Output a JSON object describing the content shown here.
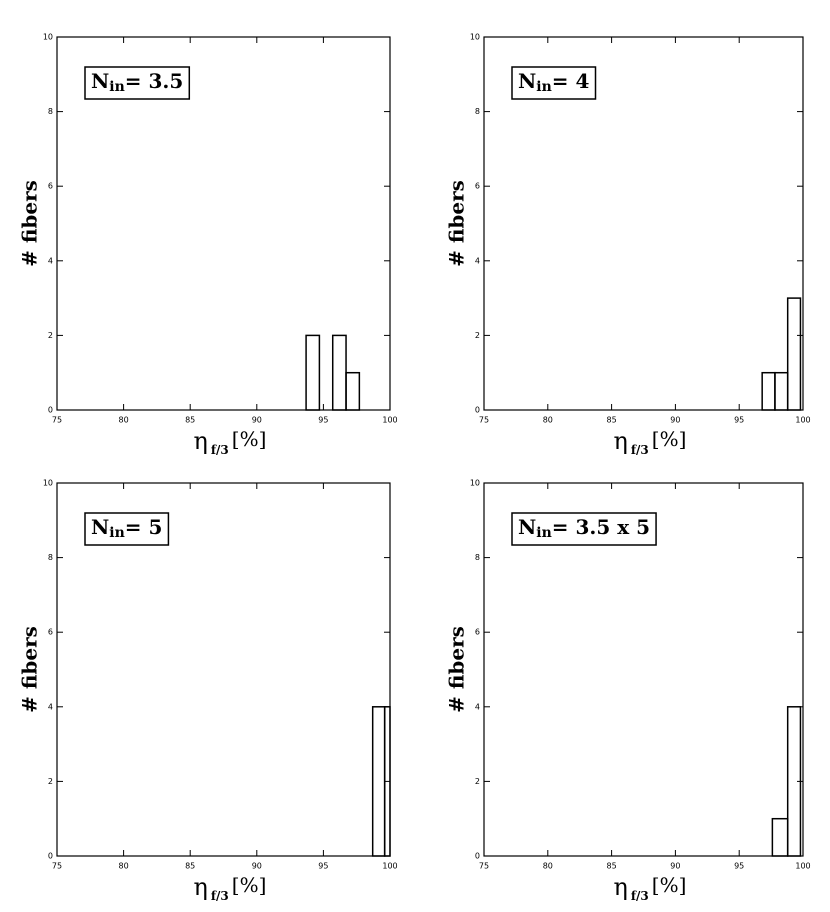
{
  "chart_data": [
    {
      "type": "histogram",
      "annotation": {
        "main": "N",
        "sub": "in",
        "rest": "= 3.5"
      },
      "xlabel": {
        "main": "η",
        "sub": "f/3",
        "rest": "[%]"
      },
      "ylabel": "# fibers",
      "bins": [
        93.7,
        94.7,
        95.7,
        96.7,
        97.7
      ],
      "values": [
        2,
        0,
        2,
        1
      ],
      "xlim": [
        75,
        100
      ],
      "ylim": [
        0,
        10
      ],
      "xticks": [
        75,
        80,
        85,
        90,
        95,
        100
      ],
      "yticks": [
        0,
        2,
        4,
        6,
        8,
        10
      ],
      "color": "#000000"
    },
    {
      "type": "histogram",
      "annotation": {
        "main": "N",
        "sub": "in",
        "rest": "= 4"
      },
      "xlabel": {
        "main": "η",
        "sub": "f/3",
        "rest": "[%]"
      },
      "ylabel": "# fibers",
      "bins": [
        96.8,
        97.8,
        98.8,
        99.8
      ],
      "values": [
        1,
        1,
        3
      ],
      "xlim": [
        75,
        100
      ],
      "ylim": [
        0,
        10
      ],
      "xticks": [
        75,
        80,
        85,
        90,
        95,
        100
      ],
      "yticks": [
        0,
        2,
        4,
        6,
        8,
        10
      ],
      "color": "#000000"
    },
    {
      "type": "histogram",
      "annotation": {
        "main": "N",
        "sub": "in",
        "rest": "= 5"
      },
      "xlabel": {
        "main": "η",
        "sub": "f/3",
        "rest": "[%]"
      },
      "ylabel": "# fibers",
      "bins": [
        98.7,
        99.6,
        100
      ],
      "values": [
        4,
        4
      ],
      "xlim": [
        75,
        100
      ],
      "ylim": [
        0,
        10
      ],
      "xticks": [
        75,
        80,
        85,
        90,
        95,
        100
      ],
      "yticks": [
        0,
        2,
        4,
        6,
        8,
        10
      ],
      "color": "#000000"
    },
    {
      "type": "histogram",
      "annotation": {
        "main": "N",
        "sub": "in",
        "rest": "= 3.5 x 5"
      },
      "xlabel": {
        "main": "η",
        "sub": "f/3",
        "rest": "[%]"
      },
      "ylabel": "# fibers",
      "bins": [
        97.6,
        98.8,
        99.8
      ],
      "values": [
        1,
        4
      ],
      "xlim": [
        75,
        100
      ],
      "ylim": [
        0,
        10
      ],
      "xticks": [
        75,
        80,
        85,
        90,
        95,
        100
      ],
      "yticks": [
        0,
        2,
        4,
        6,
        8,
        10
      ],
      "color": "#000000"
    }
  ]
}
